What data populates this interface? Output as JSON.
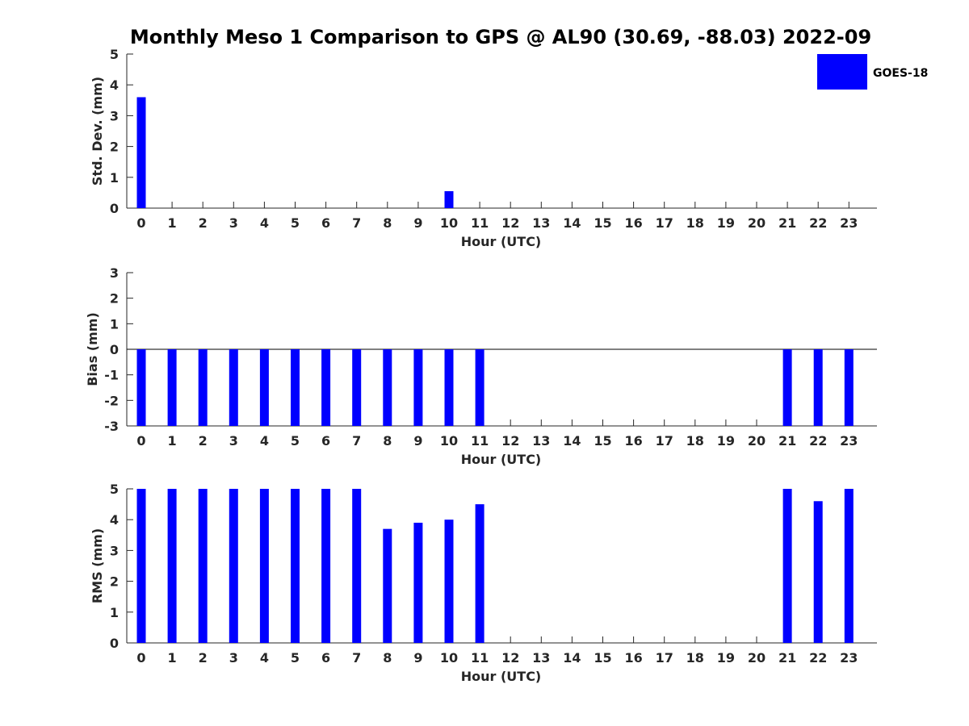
{
  "title": "Monthly Meso 1 Comparison to GPS @ AL90 (30.69, -88.03) 2022-09",
  "legend": {
    "label": "GOES-18",
    "color": "#0000ff",
    "placement": "top-right"
  },
  "bar_color": "#0000ff",
  "chart_data": [
    {
      "type": "bar",
      "xlabel": "Hour (UTC)",
      "ylabel": "Std. Dev. (mm)",
      "categories": [
        "0",
        "1",
        "2",
        "3",
        "4",
        "5",
        "6",
        "7",
        "8",
        "9",
        "10",
        "11",
        "12",
        "13",
        "14",
        "15",
        "16",
        "17",
        "18",
        "19",
        "20",
        "21",
        "22",
        "23"
      ],
      "series": [
        {
          "name": "GOES-18",
          "values": [
            3.6,
            null,
            null,
            null,
            null,
            null,
            null,
            null,
            null,
            null,
            0.55,
            null,
            null,
            null,
            null,
            null,
            null,
            null,
            null,
            null,
            null,
            null,
            null,
            null
          ]
        }
      ],
      "ylim": [
        0,
        5
      ],
      "yticks": [
        0,
        1,
        2,
        3,
        4,
        5
      ],
      "grid": false
    },
    {
      "type": "bar",
      "xlabel": "Hour (UTC)",
      "ylabel": "Bias (mm)",
      "categories": [
        "0",
        "1",
        "2",
        "3",
        "4",
        "5",
        "6",
        "7",
        "8",
        "9",
        "10",
        "11",
        "12",
        "13",
        "14",
        "15",
        "16",
        "17",
        "18",
        "19",
        "20",
        "21",
        "22",
        "23"
      ],
      "series": [
        {
          "name": "GOES-18",
          "values": [
            -3,
            -3,
            -3,
            -3,
            -3,
            -3,
            -3,
            -3,
            -3,
            -3,
            -3,
            -3,
            null,
            null,
            null,
            null,
            null,
            null,
            null,
            null,
            null,
            -3,
            -3,
            -3
          ]
        }
      ],
      "ylim": [
        -3,
        3
      ],
      "yticks": [
        -3,
        -2,
        -1,
        0,
        1,
        2,
        3
      ],
      "grid": false
    },
    {
      "type": "bar",
      "xlabel": "Hour (UTC)",
      "ylabel": "RMS (mm)",
      "categories": [
        "0",
        "1",
        "2",
        "3",
        "4",
        "5",
        "6",
        "7",
        "8",
        "9",
        "10",
        "11",
        "12",
        "13",
        "14",
        "15",
        "16",
        "17",
        "18",
        "19",
        "20",
        "21",
        "22",
        "23"
      ],
      "series": [
        {
          "name": "GOES-18",
          "values": [
            5,
            5,
            5,
            5,
            5,
            5,
            5,
            5,
            3.7,
            3.9,
            4.0,
            4.5,
            null,
            null,
            null,
            null,
            null,
            null,
            null,
            null,
            null,
            5,
            4.6,
            5
          ]
        }
      ],
      "ylim": [
        0,
        5
      ],
      "yticks": [
        0,
        1,
        2,
        3,
        4,
        5
      ],
      "grid": false
    }
  ]
}
